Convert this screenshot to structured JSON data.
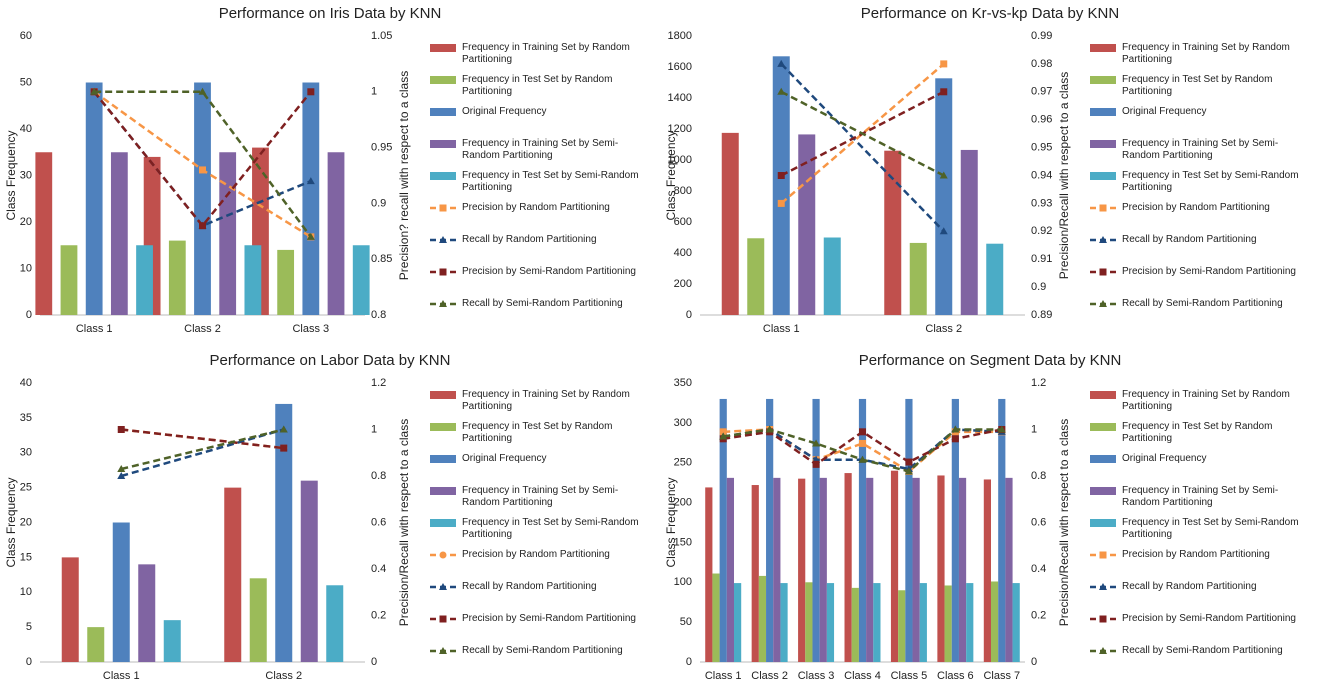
{
  "chart_data": [
    {
      "type": "bar",
      "title": "Performance on Iris Data by KNN",
      "ylabel": "Class Frequency",
      "y2label": "Precision? recall with respect to a class",
      "categories": [
        "Class 1",
        "Class 2",
        "Class 3"
      ],
      "ylim": [
        0,
        60
      ],
      "yticks": [
        0,
        10,
        20,
        30,
        40,
        50,
        60
      ],
      "y2lim": [
        0.8,
        1.05
      ],
      "y2ticks": [
        0.8,
        0.85,
        0.9,
        0.95,
        1,
        1.05
      ],
      "series": [
        {
          "name": "Frequency in Training Set by Random Partitioning",
          "color": "#c0504d",
          "values": [
            35,
            34,
            36
          ]
        },
        {
          "name": "Frequency in Test Set by Random Partitioning",
          "color": "#9bbb59",
          "values": [
            15,
            16,
            14
          ]
        },
        {
          "name": "Original Frequency",
          "color": "#4f81bd",
          "values": [
            50,
            50,
            50
          ]
        },
        {
          "name": "Frequency in Training Set by Semi-Random Partitioning",
          "color": "#8064a2",
          "values": [
            35,
            35,
            35
          ]
        },
        {
          "name": "Frequency in Test Set by  Semi-Random Partitioning",
          "color": "#4bacc6",
          "values": [
            15,
            15,
            15
          ]
        },
        {
          "name": "Precision by Random Partitioning",
          "color": "#f79646",
          "axis": "y2",
          "marker": "square",
          "values": [
            1,
            0.93,
            0.87
          ]
        },
        {
          "name": "Recall by Random Partitioning",
          "color": "#1f497d",
          "axis": "y2",
          "marker": "triangle",
          "values": [
            1,
            0.88,
            0.92
          ]
        },
        {
          "name": "Precision by Semi-Random Partitioning",
          "color": "#7f2020",
          "axis": "y2",
          "marker": "square",
          "values": [
            1,
            0.88,
            1
          ]
        },
        {
          "name": "Recall by  Semi-Random Partitioning",
          "color": "#4f6228",
          "axis": "y2",
          "marker": "triangle",
          "values": [
            1,
            1,
            0.87
          ]
        }
      ]
    },
    {
      "type": "bar",
      "title": "Performance on Kr-vs-kp Data by KNN",
      "ylabel": "Class Frequency",
      "y2label": "Precision/Recall with respect to a class",
      "categories": [
        "Class 1",
        "Class 2"
      ],
      "ylim": [
        0,
        1800
      ],
      "yticks": [
        0,
        200,
        400,
        600,
        800,
        1000,
        1200,
        1400,
        1600,
        1800
      ],
      "y2lim": [
        0.89,
        0.99
      ],
      "y2ticks": [
        0.89,
        0.9,
        0.91,
        0.92,
        0.93,
        0.94,
        0.95,
        0.96,
        0.97,
        0.98,
        0.99
      ],
      "series": [
        {
          "name": "Frequency in Training Set by Random Partitioning",
          "color": "#c0504d",
          "values": [
            1175,
            1060
          ]
        },
        {
          "name": "Frequency in Test Set by Random Partitioning",
          "color": "#9bbb59",
          "values": [
            495,
            465
          ]
        },
        {
          "name": "Original Frequency",
          "color": "#4f81bd",
          "values": [
            1669,
            1527
          ]
        },
        {
          "name": "Frequency in Training Set by Semi-Random Partitioning",
          "color": "#8064a2",
          "values": [
            1165,
            1065
          ]
        },
        {
          "name": "Frequency in Test Set by  Semi-Random Partitioning",
          "color": "#4bacc6",
          "values": [
            500,
            460
          ]
        },
        {
          "name": "Precision by Random Partitioning",
          "color": "#f79646",
          "axis": "y2",
          "marker": "square",
          "values": [
            0.93,
            0.98
          ]
        },
        {
          "name": "Recall by Random Partitioning",
          "color": "#1f497d",
          "axis": "y2",
          "marker": "triangle",
          "values": [
            0.98,
            0.92
          ]
        },
        {
          "name": "Precision by Semi-Random Partitioning",
          "color": "#7f2020",
          "axis": "y2",
          "marker": "square",
          "values": [
            0.94,
            0.97
          ]
        },
        {
          "name": "Recall by  Semi-Random Partitioning",
          "color": "#4f6228",
          "axis": "y2",
          "marker": "triangle",
          "values": [
            0.97,
            0.94
          ]
        }
      ]
    },
    {
      "type": "bar",
      "title": "Performance on Labor Data by KNN",
      "ylabel": "Class Frequency",
      "y2label": "Precision/Recall with respect to a class",
      "categories": [
        "Class 1",
        "Class 2"
      ],
      "ylim": [
        0,
        40
      ],
      "yticks": [
        0,
        5,
        10,
        15,
        20,
        25,
        30,
        35,
        40
      ],
      "y2lim": [
        0,
        1.2
      ],
      "y2ticks": [
        0,
        0.2,
        0.4,
        0.6,
        0.8,
        1,
        1.2
      ],
      "series": [
        {
          "name": "Frequency in Training Set by Random Partitioning",
          "color": "#c0504d",
          "values": [
            15,
            25
          ]
        },
        {
          "name": "Frequency in Test Set by Random Partitioning",
          "color": "#9bbb59",
          "values": [
            5,
            12
          ]
        },
        {
          "name": "Original Frequency",
          "color": "#4f81bd",
          "values": [
            20,
            37
          ]
        },
        {
          "name": "Frequency in Training Set by Semi-Random Partitioning",
          "color": "#8064a2",
          "values": [
            14,
            26
          ]
        },
        {
          "name": "Frequency in Test Set by  Semi-Random Partitioning",
          "color": "#4bacc6",
          "values": [
            6,
            11
          ]
        },
        {
          "name": "Precision by Random Partitioning",
          "color": "#f79646",
          "axis": "y2",
          "marker": "circle",
          "values": [
            1,
            0.92
          ]
        },
        {
          "name": "Recall by Random Partitioning",
          "color": "#1f497d",
          "axis": "y2",
          "marker": "triangle",
          "values": [
            0.8,
            1
          ]
        },
        {
          "name": "Precision by Semi-Random Partitioning",
          "color": "#7f2020",
          "axis": "y2",
          "marker": "square",
          "values": [
            1,
            0.92
          ]
        },
        {
          "name": "Recall by  Semi-Random Partitioning",
          "color": "#4f6228",
          "axis": "y2",
          "marker": "triangle",
          "values": [
            0.83,
            1
          ]
        }
      ]
    },
    {
      "type": "bar",
      "title": "Performance on Segment Data by KNN",
      "ylabel": "Class Frequency",
      "y2label": "Precision/Recall with respect to a class",
      "categories": [
        "Class 1",
        "Class 2",
        "Class 3",
        "Class 4",
        "Class 5",
        "Class 6",
        "Class 7"
      ],
      "ylim": [
        0,
        350
      ],
      "yticks": [
        0,
        50,
        100,
        150,
        200,
        250,
        300,
        350
      ],
      "y2lim": [
        0,
        1.2
      ],
      "y2ticks": [
        0,
        0.2,
        0.4,
        0.6,
        0.8,
        1,
        1.2
      ],
      "series": [
        {
          "name": "Frequency in Training Set by Random Partitioning",
          "color": "#c0504d",
          "values": [
            219,
            222,
            230,
            237,
            240,
            234,
            229
          ]
        },
        {
          "name": "Frequency in Test Set by Random Partitioning",
          "color": "#9bbb59",
          "values": [
            111,
            108,
            100,
            93,
            90,
            96,
            101
          ]
        },
        {
          "name": "Original Frequency",
          "color": "#4f81bd",
          "values": [
            330,
            330,
            330,
            330,
            330,
            330,
            330
          ]
        },
        {
          "name": "Frequency in Training Set by Semi-Random Partitioning",
          "color": "#8064a2",
          "values": [
            231,
            231,
            231,
            231,
            231,
            231,
            231
          ]
        },
        {
          "name": "Frequency in Test Set by  Semi-Random Partitioning",
          "color": "#4bacc6",
          "values": [
            99,
            99,
            99,
            99,
            99,
            99,
            99
          ]
        },
        {
          "name": "Precision by Random Partitioning",
          "color": "#f79646",
          "axis": "y2",
          "marker": "square",
          "values": [
            0.99,
            1,
            0.87,
            0.94,
            0.82,
            0.99,
            0.99
          ]
        },
        {
          "name": "Recall by Random Partitioning",
          "color": "#1f497d",
          "axis": "y2",
          "marker": "triangle",
          "values": [
            0.97,
            1,
            0.87,
            0.87,
            0.83,
            1,
            0.99
          ]
        },
        {
          "name": "Precision by Semi-Random Partitioning",
          "color": "#7f2020",
          "axis": "y2",
          "marker": "square",
          "values": [
            0.96,
            0.99,
            0.85,
            0.99,
            0.86,
            0.96,
            1
          ]
        },
        {
          "name": "Recall by  Semi-Random Partitioning",
          "color": "#4f6228",
          "axis": "y2",
          "marker": "triangle",
          "values": [
            0.97,
            1,
            0.94,
            0.87,
            0.82,
            1,
            1
          ]
        }
      ]
    }
  ]
}
